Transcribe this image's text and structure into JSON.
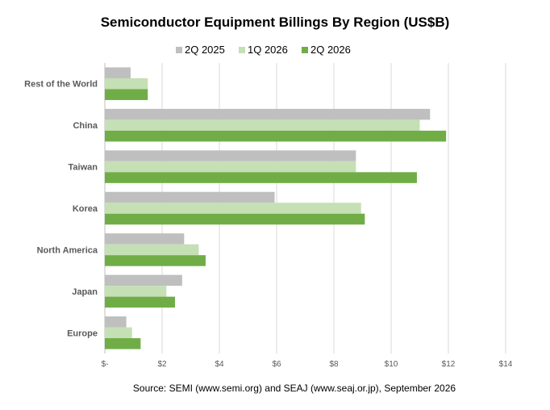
{
  "chart_data": {
    "type": "bar",
    "orientation": "horizontal",
    "title": "Semiconductor Equipment Billings By Region (US$B)",
    "categories": [
      "Rest of the World",
      "China",
      "Taiwan",
      "Korea",
      "North America",
      "Japan",
      "Europe"
    ],
    "series": [
      {
        "name": "2Q 2025",
        "color": "#bfbfbf",
        "values": [
          0.9,
          11.36,
          8.77,
          5.93,
          2.77,
          2.7,
          0.75
        ]
      },
      {
        "name": "1Q 2026",
        "color": "#c5e0b4",
        "values": [
          1.5,
          11.0,
          8.77,
          8.95,
          3.28,
          2.15,
          0.95
        ]
      },
      {
        "name": "2Q 2026",
        "color": "#70ad47",
        "values": [
          1.5,
          11.92,
          10.9,
          9.08,
          3.52,
          2.45,
          1.25
        ]
      }
    ],
    "xlim": [
      0,
      14
    ],
    "xticks": [
      0,
      2,
      4,
      6,
      8,
      10,
      12,
      14
    ],
    "xtick_labels": [
      "$-",
      "$2",
      "$4",
      "$6",
      "$8",
      "$10",
      "$12",
      "$14"
    ],
    "grid": true,
    "legend_position": "top"
  },
  "source": "Source: SEMI (www.semi.org) and SEAJ (www.seaj.or.jp), September 2026"
}
